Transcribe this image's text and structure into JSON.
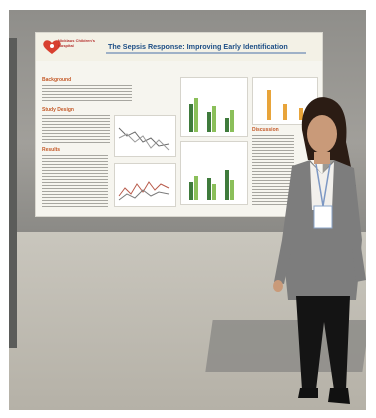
{
  "poster": {
    "title": "The Sepsis Response: Improving Early Identification",
    "logo_text": "Nicklaus Children's Hospital",
    "sections": {
      "background": "Background",
      "study_design": "Study Design",
      "results": "Results",
      "discussion": "Discussion"
    }
  },
  "colors": {
    "poster_title": "#1e4f86",
    "section_heading": "#c45927",
    "logo": "#b5312e"
  }
}
